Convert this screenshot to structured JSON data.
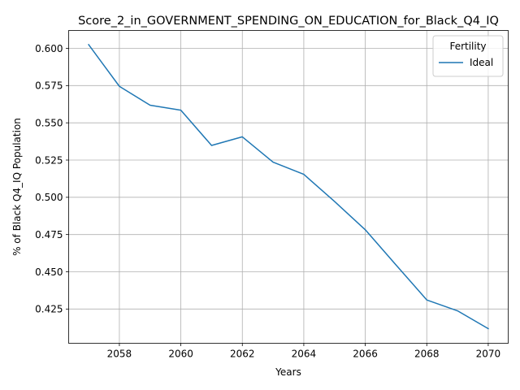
{
  "chart_data": {
    "type": "line",
    "title": "Score_2_in_GOVERNMENT_SPENDING_ON_EDUCATION_for_Black_Q4_IQ",
    "xlabel": "Years",
    "ylabel": "% of Black Q4_IQ Population",
    "xlim": [
      2056.35,
      2070.65
    ],
    "ylim": [
      0.402,
      0.612
    ],
    "x_ticks": [
      2058,
      2060,
      2062,
      2064,
      2066,
      2068,
      2070
    ],
    "y_ticks": [
      0.425,
      0.45,
      0.475,
      0.5,
      0.525,
      0.55,
      0.575,
      0.6
    ],
    "y_tick_labels": [
      "0.425",
      "0.450",
      "0.475",
      "0.500",
      "0.525",
      "0.550",
      "0.575",
      "0.600"
    ],
    "grid": true,
    "legend": {
      "title": "Fertility",
      "placement": "top-right"
    },
    "series": [
      {
        "name": "Ideal",
        "color": "#1f77b4",
        "x": [
          2057,
          2058,
          2059,
          2060,
          2061,
          2062,
          2063,
          2064,
          2065,
          2066,
          2067,
          2068,
          2069,
          2070
        ],
        "y": [
          0.6025,
          0.5745,
          0.5618,
          0.5585,
          0.5348,
          0.5406,
          0.5236,
          0.5154,
          0.4972,
          0.4782,
          0.4546,
          0.4311,
          0.4238,
          0.4118
        ]
      }
    ]
  }
}
